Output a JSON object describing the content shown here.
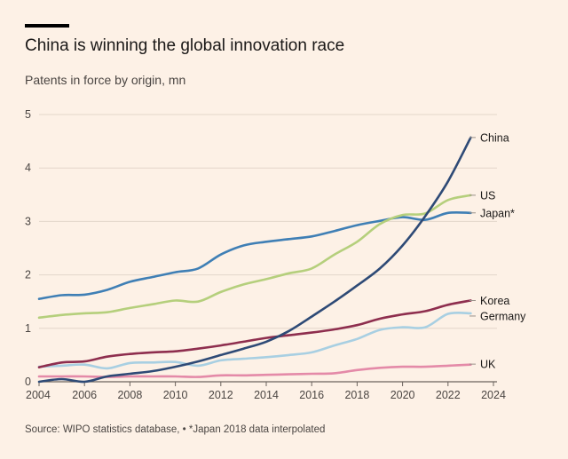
{
  "header": {
    "title": "China is winning the global innovation race",
    "subtitle": "Patents in force by origin, mn"
  },
  "footer": {
    "source": "Source: WIPO statistics database, • *Japan 2018 data interpolated"
  },
  "colors": {
    "background": "#fdf1e6",
    "grid": "#e3d6ca",
    "china": "#2e4a76",
    "us": "#b5cf7c",
    "japan": "#3f7fb5",
    "korea": "#8e2e4e",
    "germany": "#a8cfe2",
    "uk": "#e48aa8"
  },
  "chart_data": {
    "type": "line",
    "title": "China is winning the global innovation race",
    "subtitle": "Patents in force by origin, mn",
    "xlabel": "",
    "ylabel": "",
    "xlim": [
      2004,
      2024
    ],
    "ylim": [
      0,
      5
    ],
    "x_ticks": [
      "2004",
      "2006",
      "2008",
      "2010",
      "2012",
      "2014",
      "2016",
      "2018",
      "2020",
      "2022",
      "2024"
    ],
    "y_ticks": [
      "0",
      "1",
      "2",
      "3",
      "4",
      "5"
    ],
    "grid": "horizontal",
    "legend": "direct labels at right end of lines",
    "x": [
      2004,
      2005,
      2006,
      2007,
      2008,
      2009,
      2010,
      2011,
      2012,
      2013,
      2014,
      2015,
      2016,
      2017,
      2018,
      2019,
      2020,
      2021,
      2022,
      2023
    ],
    "series": [
      {
        "name": "China",
        "color_key": "china",
        "stroke": 2.6,
        "values": [
          0.0,
          0.05,
          0.0,
          0.1,
          0.15,
          0.2,
          0.28,
          0.38,
          0.5,
          0.62,
          0.75,
          0.95,
          1.22,
          1.5,
          1.8,
          2.12,
          2.55,
          3.1,
          3.75,
          4.57
        ]
      },
      {
        "name": "US",
        "color_key": "us",
        "stroke": 2.6,
        "values": [
          1.2,
          1.25,
          1.28,
          1.3,
          1.38,
          1.45,
          1.52,
          1.5,
          1.68,
          1.82,
          1.92,
          2.03,
          2.12,
          2.38,
          2.62,
          2.95,
          3.12,
          3.15,
          3.4,
          3.49
        ]
      },
      {
        "name": "Japan*",
        "color_key": "japan",
        "stroke": 2.6,
        "values": [
          1.55,
          1.62,
          1.63,
          1.72,
          1.87,
          1.96,
          2.05,
          2.12,
          2.38,
          2.55,
          2.62,
          2.67,
          2.72,
          2.82,
          2.93,
          3.01,
          3.08,
          3.03,
          3.16,
          3.16
        ]
      },
      {
        "name": "Korea",
        "color_key": "korea",
        "stroke": 2.6,
        "values": [
          0.27,
          0.36,
          0.38,
          0.47,
          0.52,
          0.55,
          0.57,
          0.62,
          0.68,
          0.75,
          0.82,
          0.87,
          0.92,
          0.98,
          1.06,
          1.18,
          1.26,
          1.32,
          1.44,
          1.52
        ]
      },
      {
        "name": "Germany",
        "color_key": "germany",
        "stroke": 2.6,
        "values": [
          0.28,
          0.3,
          0.32,
          0.25,
          0.35,
          0.36,
          0.37,
          0.3,
          0.4,
          0.43,
          0.46,
          0.5,
          0.55,
          0.68,
          0.8,
          0.97,
          1.02,
          1.02,
          1.27,
          1.28
        ]
      },
      {
        "name": "UK",
        "color_key": "uk",
        "stroke": 2.6,
        "values": [
          0.1,
          0.1,
          0.1,
          0.09,
          0.1,
          0.1,
          0.1,
          0.09,
          0.12,
          0.12,
          0.13,
          0.14,
          0.15,
          0.16,
          0.22,
          0.26,
          0.28,
          0.28,
          0.3,
          0.32
        ]
      }
    ],
    "end_labels": [
      {
        "text": "China",
        "value": 4.57
      },
      {
        "text": "US",
        "value": 3.49
      },
      {
        "text": "Japan*",
        "value": 3.16
      },
      {
        "text": "Korea",
        "value": 1.52
      },
      {
        "text": "Germany",
        "value": 1.23
      },
      {
        "text": "UK",
        "value": 0.33
      }
    ]
  }
}
